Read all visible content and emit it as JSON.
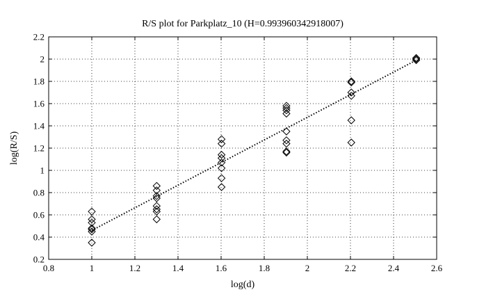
{
  "chart_data": {
    "type": "scatter",
    "title": "R/S plot for Parkplatz_10 (H=0.993960342918007)",
    "xlabel": "log(d)",
    "ylabel": "log(R/S)",
    "xlim": [
      0.8,
      2.6
    ],
    "ylim": [
      0.2,
      2.2
    ],
    "xticks": [
      0.8,
      1.0,
      1.2,
      1.4,
      1.6,
      1.8,
      2.0,
      2.2,
      2.4,
      2.6
    ],
    "yticks": [
      0.2,
      0.4,
      0.6,
      0.8,
      1.0,
      1.2,
      1.4,
      1.6,
      1.8,
      2.0,
      2.2
    ],
    "xtick_labels": [
      "0.8",
      "1",
      "1.2",
      "1.4",
      "1.6",
      "1.8",
      "2",
      "2.2",
      "2.4",
      "2.6"
    ],
    "ytick_labels": [
      "0.2",
      "0.4",
      "0.6",
      "0.8",
      "1",
      "1.2",
      "1.4",
      "1.6",
      "1.8",
      "2",
      "2.2"
    ],
    "grid": true,
    "marker": "diamond",
    "colors": {
      "axes": "#000000",
      "grid": "#000000",
      "marker": "#000000",
      "fit": "#000000"
    },
    "points": [
      {
        "x": 1.0,
        "y": 0.63
      },
      {
        "x": 1.0,
        "y": 0.56
      },
      {
        "x": 1.0,
        "y": 0.53
      },
      {
        "x": 1.0,
        "y": 0.48
      },
      {
        "x": 1.0,
        "y": 0.47
      },
      {
        "x": 1.0,
        "y": 0.45
      },
      {
        "x": 1.0,
        "y": 0.35
      },
      {
        "x": 1.301,
        "y": 0.86
      },
      {
        "x": 1.301,
        "y": 0.82
      },
      {
        "x": 1.301,
        "y": 0.77
      },
      {
        "x": 1.301,
        "y": 0.75
      },
      {
        "x": 1.301,
        "y": 0.68
      },
      {
        "x": 1.301,
        "y": 0.65
      },
      {
        "x": 1.301,
        "y": 0.63
      },
      {
        "x": 1.301,
        "y": 0.56
      },
      {
        "x": 1.602,
        "y": 1.28
      },
      {
        "x": 1.602,
        "y": 1.24
      },
      {
        "x": 1.602,
        "y": 1.14
      },
      {
        "x": 1.602,
        "y": 1.11
      },
      {
        "x": 1.602,
        "y": 1.07
      },
      {
        "x": 1.602,
        "y": 1.02
      },
      {
        "x": 1.602,
        "y": 0.93
      },
      {
        "x": 1.602,
        "y": 0.85
      },
      {
        "x": 1.903,
        "y": 1.58
      },
      {
        "x": 1.903,
        "y": 1.56
      },
      {
        "x": 1.903,
        "y": 1.54
      },
      {
        "x": 1.903,
        "y": 1.51
      },
      {
        "x": 1.903,
        "y": 1.35
      },
      {
        "x": 1.903,
        "y": 1.27
      },
      {
        "x": 1.903,
        "y": 1.24
      },
      {
        "x": 1.903,
        "y": 1.17
      },
      {
        "x": 1.903,
        "y": 1.16
      },
      {
        "x": 2.204,
        "y": 1.8
      },
      {
        "x": 2.204,
        "y": 1.79
      },
      {
        "x": 2.204,
        "y": 1.7
      },
      {
        "x": 2.204,
        "y": 1.67
      },
      {
        "x": 2.204,
        "y": 1.45
      },
      {
        "x": 2.204,
        "y": 1.25
      },
      {
        "x": 2.505,
        "y": 2.01
      },
      {
        "x": 2.505,
        "y": 2.0
      },
      {
        "x": 2.505,
        "y": 1.99
      }
    ],
    "fit_line": {
      "style": "dotted",
      "x": [
        1.0,
        2.505
      ],
      "y": [
        0.46,
        1.99
      ]
    }
  }
}
